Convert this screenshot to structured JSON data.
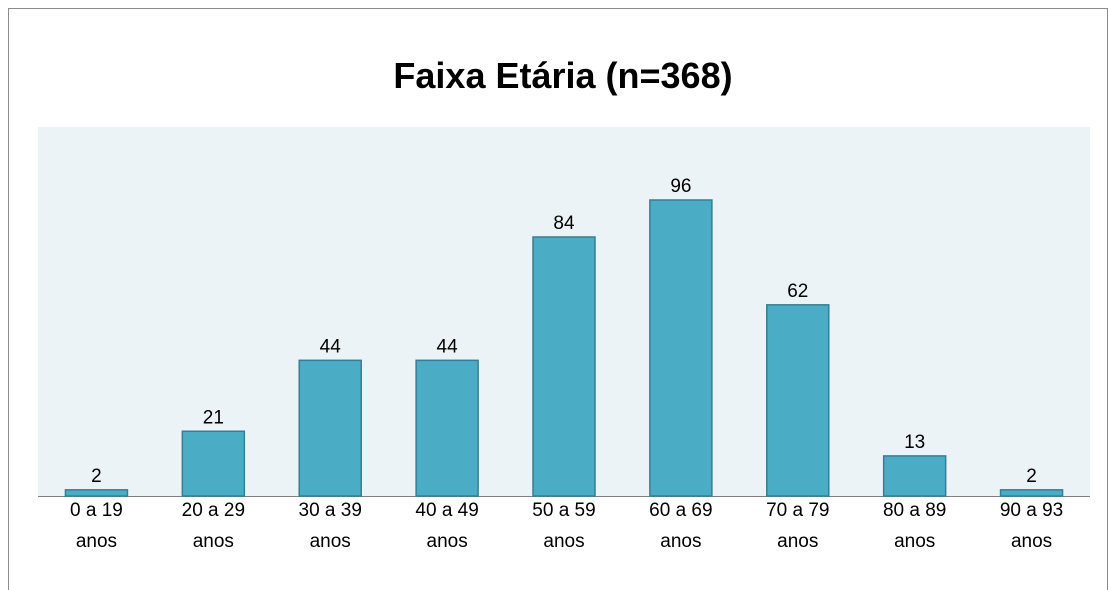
{
  "chart_data": {
    "type": "bar",
    "title": "Faixa Etária (n=368)",
    "categories": [
      "0 a 19 anos",
      "20 a 29 anos",
      "30 a 39 anos",
      "40 a 49 anos",
      "50 a 59 anos",
      "60 a 69 anos",
      "70 a 79 anos",
      "80 a 89 anos",
      "90 a 93 anos"
    ],
    "values": [
      2,
      21,
      44,
      44,
      84,
      96,
      62,
      13,
      2
    ],
    "color": "#4bacc6"
  }
}
